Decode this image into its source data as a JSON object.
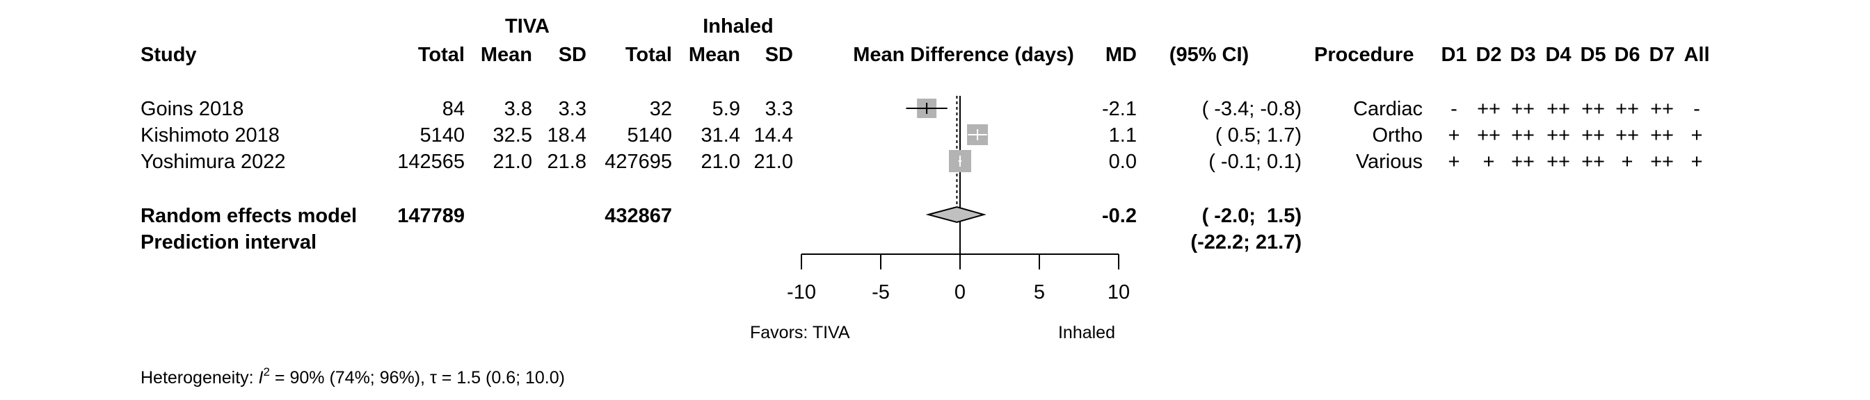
{
  "headers": {
    "tiva_group": "TIVA",
    "inhaled_group": "Inhaled",
    "study": "Study",
    "total": "Total",
    "mean": "Mean",
    "sd": "SD",
    "effect": "Mean Difference (days)",
    "md": "MD",
    "ci": "(95% CI)",
    "procedure": "Procedure",
    "domains": [
      "D1",
      "D2",
      "D3",
      "D4",
      "D5",
      "D6",
      "D7",
      "All"
    ]
  },
  "studies": [
    {
      "name": "Goins 2018",
      "tiva_total": "84",
      "tiva_mean": "3.8",
      "tiva_sd": "3.3",
      "inh_total": "32",
      "inh_mean": "5.9",
      "inh_sd": "3.3",
      "md_text": "-2.1",
      "ci_text": "( -3.4; -0.8)",
      "procedure": "Cardiac",
      "rob": [
        "-",
        "++",
        "++",
        "++",
        "++",
        "++",
        "++",
        "-"
      ]
    },
    {
      "name": "Kishimoto 2018",
      "tiva_total": "5140",
      "tiva_mean": "32.5",
      "tiva_sd": "18.4",
      "inh_total": "5140",
      "inh_mean": "31.4",
      "inh_sd": "14.4",
      "md_text": "1.1",
      "ci_text": "(  0.5;  1.7)",
      "procedure": "Ortho",
      "rob": [
        "+",
        "++",
        "++",
        "++",
        "++",
        "++",
        "++",
        "+"
      ]
    },
    {
      "name": "Yoshimura 2022",
      "tiva_total": "142565",
      "tiva_mean": "21.0",
      "tiva_sd": "21.8",
      "inh_total": "427695",
      "inh_mean": "21.0",
      "inh_sd": "21.0",
      "md_text": "0.0",
      "ci_text": "( -0.1;  0.1)",
      "procedure": "Various",
      "rob": [
        "+",
        "+",
        "++",
        "++",
        "++",
        "+",
        "++",
        "+"
      ]
    }
  ],
  "random_effects": {
    "label": "Random effects model",
    "tiva_total": "147789",
    "inh_total": "432867",
    "md_text": "-0.2",
    "ci_text": "( -2.0;  1.5)"
  },
  "prediction": {
    "label": "Prediction interval",
    "ci_text": "(-22.2; 21.7)"
  },
  "axis": {
    "favors_left": "Favors: TIVA",
    "favors_right": "Inhaled"
  },
  "heterogeneity": {
    "prefix": "Heterogeneity: ",
    "i_symbol": "I",
    "sup": "2",
    "rest": " = 90% (74%; 96%), τ = 1.5 (0.6; 10.0)"
  },
  "chart_data": {
    "type": "forest",
    "xlabel": "Mean Difference (days)",
    "xlim": [
      -10,
      10
    ],
    "ticks": [
      -10,
      -5,
      0,
      5,
      10
    ],
    "reference_line": 0,
    "studies": [
      {
        "name": "Goins 2018",
        "md": -2.1,
        "lower": -3.4,
        "upper": -0.8
      },
      {
        "name": "Kishimoto 2018",
        "md": 1.1,
        "lower": 0.5,
        "upper": 1.7
      },
      {
        "name": "Yoshimura 2022",
        "md": 0.0,
        "lower": -0.1,
        "upper": 0.1
      }
    ],
    "pooled": {
      "md": -0.2,
      "lower": -2.0,
      "upper": 1.5
    },
    "prediction_interval": {
      "lower": -22.2,
      "upper": 21.7
    },
    "colors": {
      "box": "#b3b3b3",
      "diamond": "#c0c0c0"
    }
  }
}
